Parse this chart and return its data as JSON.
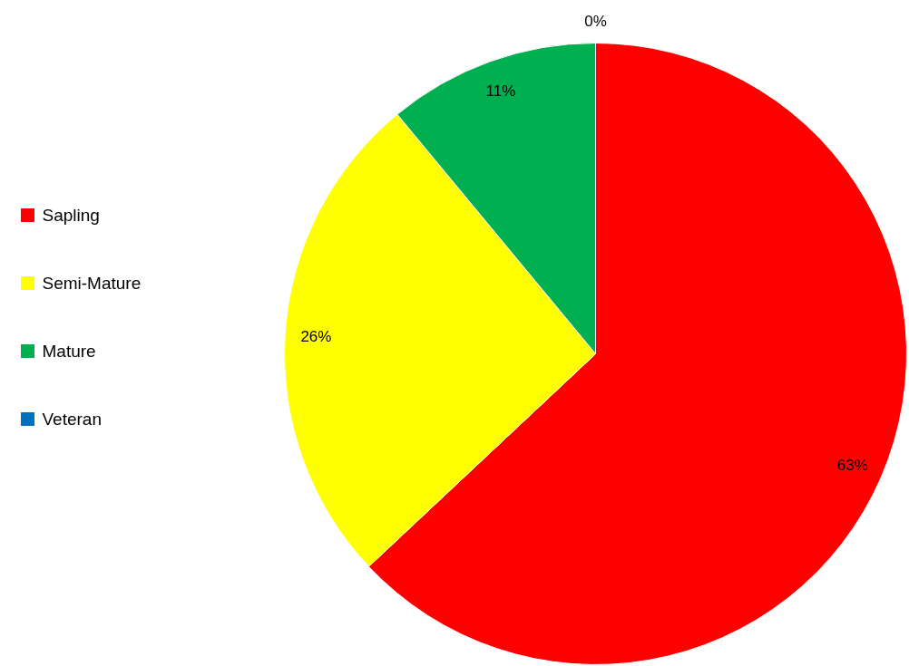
{
  "chart_data": {
    "type": "pie",
    "categories": [
      "Sapling",
      "Semi-Mature",
      "Mature",
      "Veteran"
    ],
    "values": [
      63,
      26,
      11,
      0
    ],
    "colors": [
      "#ff0000",
      "#ffff00",
      "#00b050",
      "#0070c0"
    ],
    "value_labels": [
      "63%",
      "26%",
      "11%",
      "0%"
    ],
    "legend": "left"
  }
}
